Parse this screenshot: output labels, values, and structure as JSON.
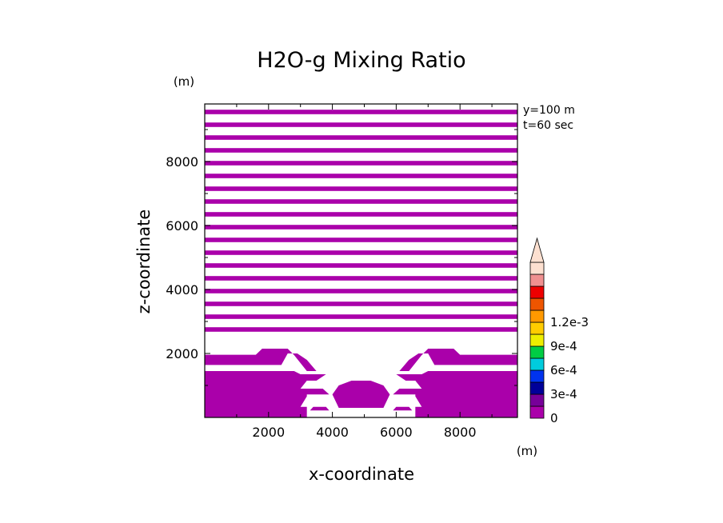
{
  "chart_data": {
    "type": "heatmap",
    "title": "H2O-g Mixing Ratio",
    "xlabel": "x-coordinate",
    "ylabel": "z-coordinate",
    "x_unit": "(m)",
    "y_unit": "(m)",
    "xlim": [
      0,
      9800
    ],
    "ylim": [
      0,
      9800
    ],
    "x_ticks": [
      "2000",
      "4000",
      "6000",
      "8000"
    ],
    "x_tick_values": [
      2000,
      4000,
      6000,
      8000
    ],
    "y_ticks": [
      "2000",
      "4000",
      "6000",
      "8000"
    ],
    "y_tick_values": [
      2000,
      4000,
      6000,
      8000
    ],
    "annotations": [
      "y=100 m",
      "t=60 sec"
    ],
    "colorbar": {
      "labels": [
        "0",
        "3e-4",
        "6e-4",
        "9e-4",
        "1.2e-3"
      ],
      "label_values": [
        0,
        0.0003,
        0.0006,
        0.0009,
        0.0012
      ],
      "levels": [
        0,
        0.00015,
        0.0003,
        0.00045,
        0.0006,
        0.00075,
        0.0009,
        0.00105,
        0.0012,
        0.00135
      ],
      "colors": [
        "#aa00aa",
        "#770099",
        "#000099",
        "#0033ee",
        "#00ccdd",
        "#00cc44",
        "#eeee00",
        "#ffcc00",
        "#ff9900",
        "#ee5500",
        "#ee0000",
        "#f09090",
        "#fde0d0"
      ],
      "extend": "max"
    },
    "field_color": "#aa00aa",
    "upper_bands_z": [
      [
        9480,
        9620
      ],
      [
        9080,
        9220
      ],
      [
        8680,
        8820
      ],
      [
        8280,
        8420
      ],
      [
        7880,
        8020
      ],
      [
        7480,
        7620
      ],
      [
        7080,
        7220
      ],
      [
        6680,
        6820
      ],
      [
        6280,
        6420
      ],
      [
        5880,
        6020
      ],
      [
        5480,
        5620
      ],
      [
        5080,
        5220
      ],
      [
        4680,
        4820
      ],
      [
        4280,
        4420
      ],
      [
        3880,
        4020
      ],
      [
        3480,
        3620
      ],
      [
        3080,
        3220
      ],
      [
        2680,
        2820
      ]
    ],
    "lower_regions": [
      [
        [
          0,
          1620
        ],
        [
          9800,
          1620
        ],
        [
          9800,
          1960
        ],
        [
          8000,
          1960
        ],
        [
          7800,
          2150
        ],
        [
          7000,
          2150
        ],
        [
          6800,
          1950
        ],
        [
          6400,
          1450
        ],
        [
          6100,
          1450
        ],
        [
          6400,
          1800
        ],
        [
          6700,
          2000
        ],
        [
          7000,
          2000
        ],
        [
          7200,
          1640
        ],
        [
          9800,
          1640
        ],
        [
          9800,
          1620
        ],
        [
          0,
          1620
        ]
      ],
      [
        [
          0,
          1640
        ],
        [
          0,
          1960
        ],
        [
          1600,
          1960
        ],
        [
          1800,
          2150
        ],
        [
          2600,
          2150
        ],
        [
          2800,
          1950
        ],
        [
          3200,
          1450
        ],
        [
          3500,
          1450
        ],
        [
          3200,
          1800
        ],
        [
          2900,
          2000
        ],
        [
          2600,
          2000
        ],
        [
          2400,
          1640
        ],
        [
          0,
          1640
        ]
      ],
      [
        [
          0,
          0
        ],
        [
          3200,
          0
        ],
        [
          3200,
          330
        ],
        [
          3000,
          330
        ],
        [
          3200,
          660
        ],
        [
          3200,
          900
        ],
        [
          3000,
          900
        ],
        [
          3200,
          1150
        ],
        [
          3500,
          1150
        ],
        [
          3800,
          1350
        ],
        [
          3000,
          1350
        ],
        [
          2800,
          1450
        ],
        [
          0,
          1450
        ]
      ],
      [
        [
          9800,
          0
        ],
        [
          6600,
          0
        ],
        [
          6600,
          330
        ],
        [
          6800,
          330
        ],
        [
          6600,
          660
        ],
        [
          6600,
          900
        ],
        [
          6800,
          900
        ],
        [
          6600,
          1150
        ],
        [
          6300,
          1150
        ],
        [
          6000,
          1350
        ],
        [
          6800,
          1350
        ],
        [
          7000,
          1450
        ],
        [
          9800,
          1450
        ]
      ],
      [
        [
          3000,
          720
        ],
        [
          3900,
          720
        ],
        [
          3700,
          900
        ],
        [
          3200,
          900
        ]
      ],
      [
        [
          6800,
          720
        ],
        [
          5900,
          720
        ],
        [
          6100,
          900
        ],
        [
          6600,
          900
        ]
      ],
      [
        [
          3300,
          220
        ],
        [
          3900,
          220
        ],
        [
          3800,
          330
        ],
        [
          3400,
          330
        ]
      ],
      [
        [
          6500,
          220
        ],
        [
          5900,
          220
        ],
        [
          6000,
          330
        ],
        [
          6400,
          330
        ]
      ],
      [
        [
          4200,
          300
        ],
        [
          5600,
          300
        ],
        [
          5800,
          720
        ],
        [
          5600,
          1000
        ],
        [
          5200,
          1150
        ],
        [
          4600,
          1150
        ],
        [
          4200,
          1000
        ],
        [
          4000,
          720
        ]
      ]
    ]
  }
}
